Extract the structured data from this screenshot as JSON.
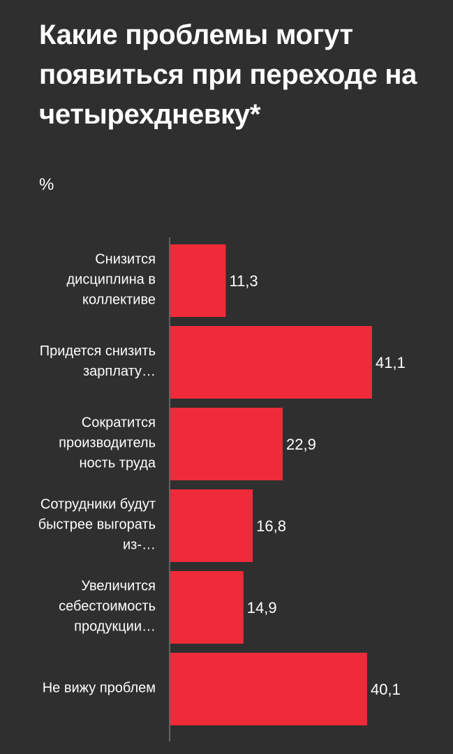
{
  "chart_data": {
    "type": "bar",
    "orientation": "horizontal",
    "title": "Какие проблемы могут появиться при переходе на четырехдневку*",
    "subtitle": "%",
    "categories": [
      "Снизится дисциплина в коллективе",
      "Придется снизить зарплату…",
      "Сократится производитель ность труда",
      "Сотрудники будут быстрее выгорать из-…",
      "Увеличится себестоимость продукции…",
      "Не вижу проблем"
    ],
    "values": [
      11.3,
      41.1,
      22.9,
      16.8,
      14.9,
      40.1
    ],
    "value_labels": [
      "11,3",
      "41,1",
      "22,9",
      "16,8",
      "14,9",
      "40,1"
    ],
    "xlim": [
      0,
      41.1
    ],
    "grid": false,
    "legend": "none",
    "colors": {
      "bar": "#ef2b3a",
      "background": "#2f2f2f",
      "axis": "#777777",
      "text": "#ffffff"
    }
  }
}
